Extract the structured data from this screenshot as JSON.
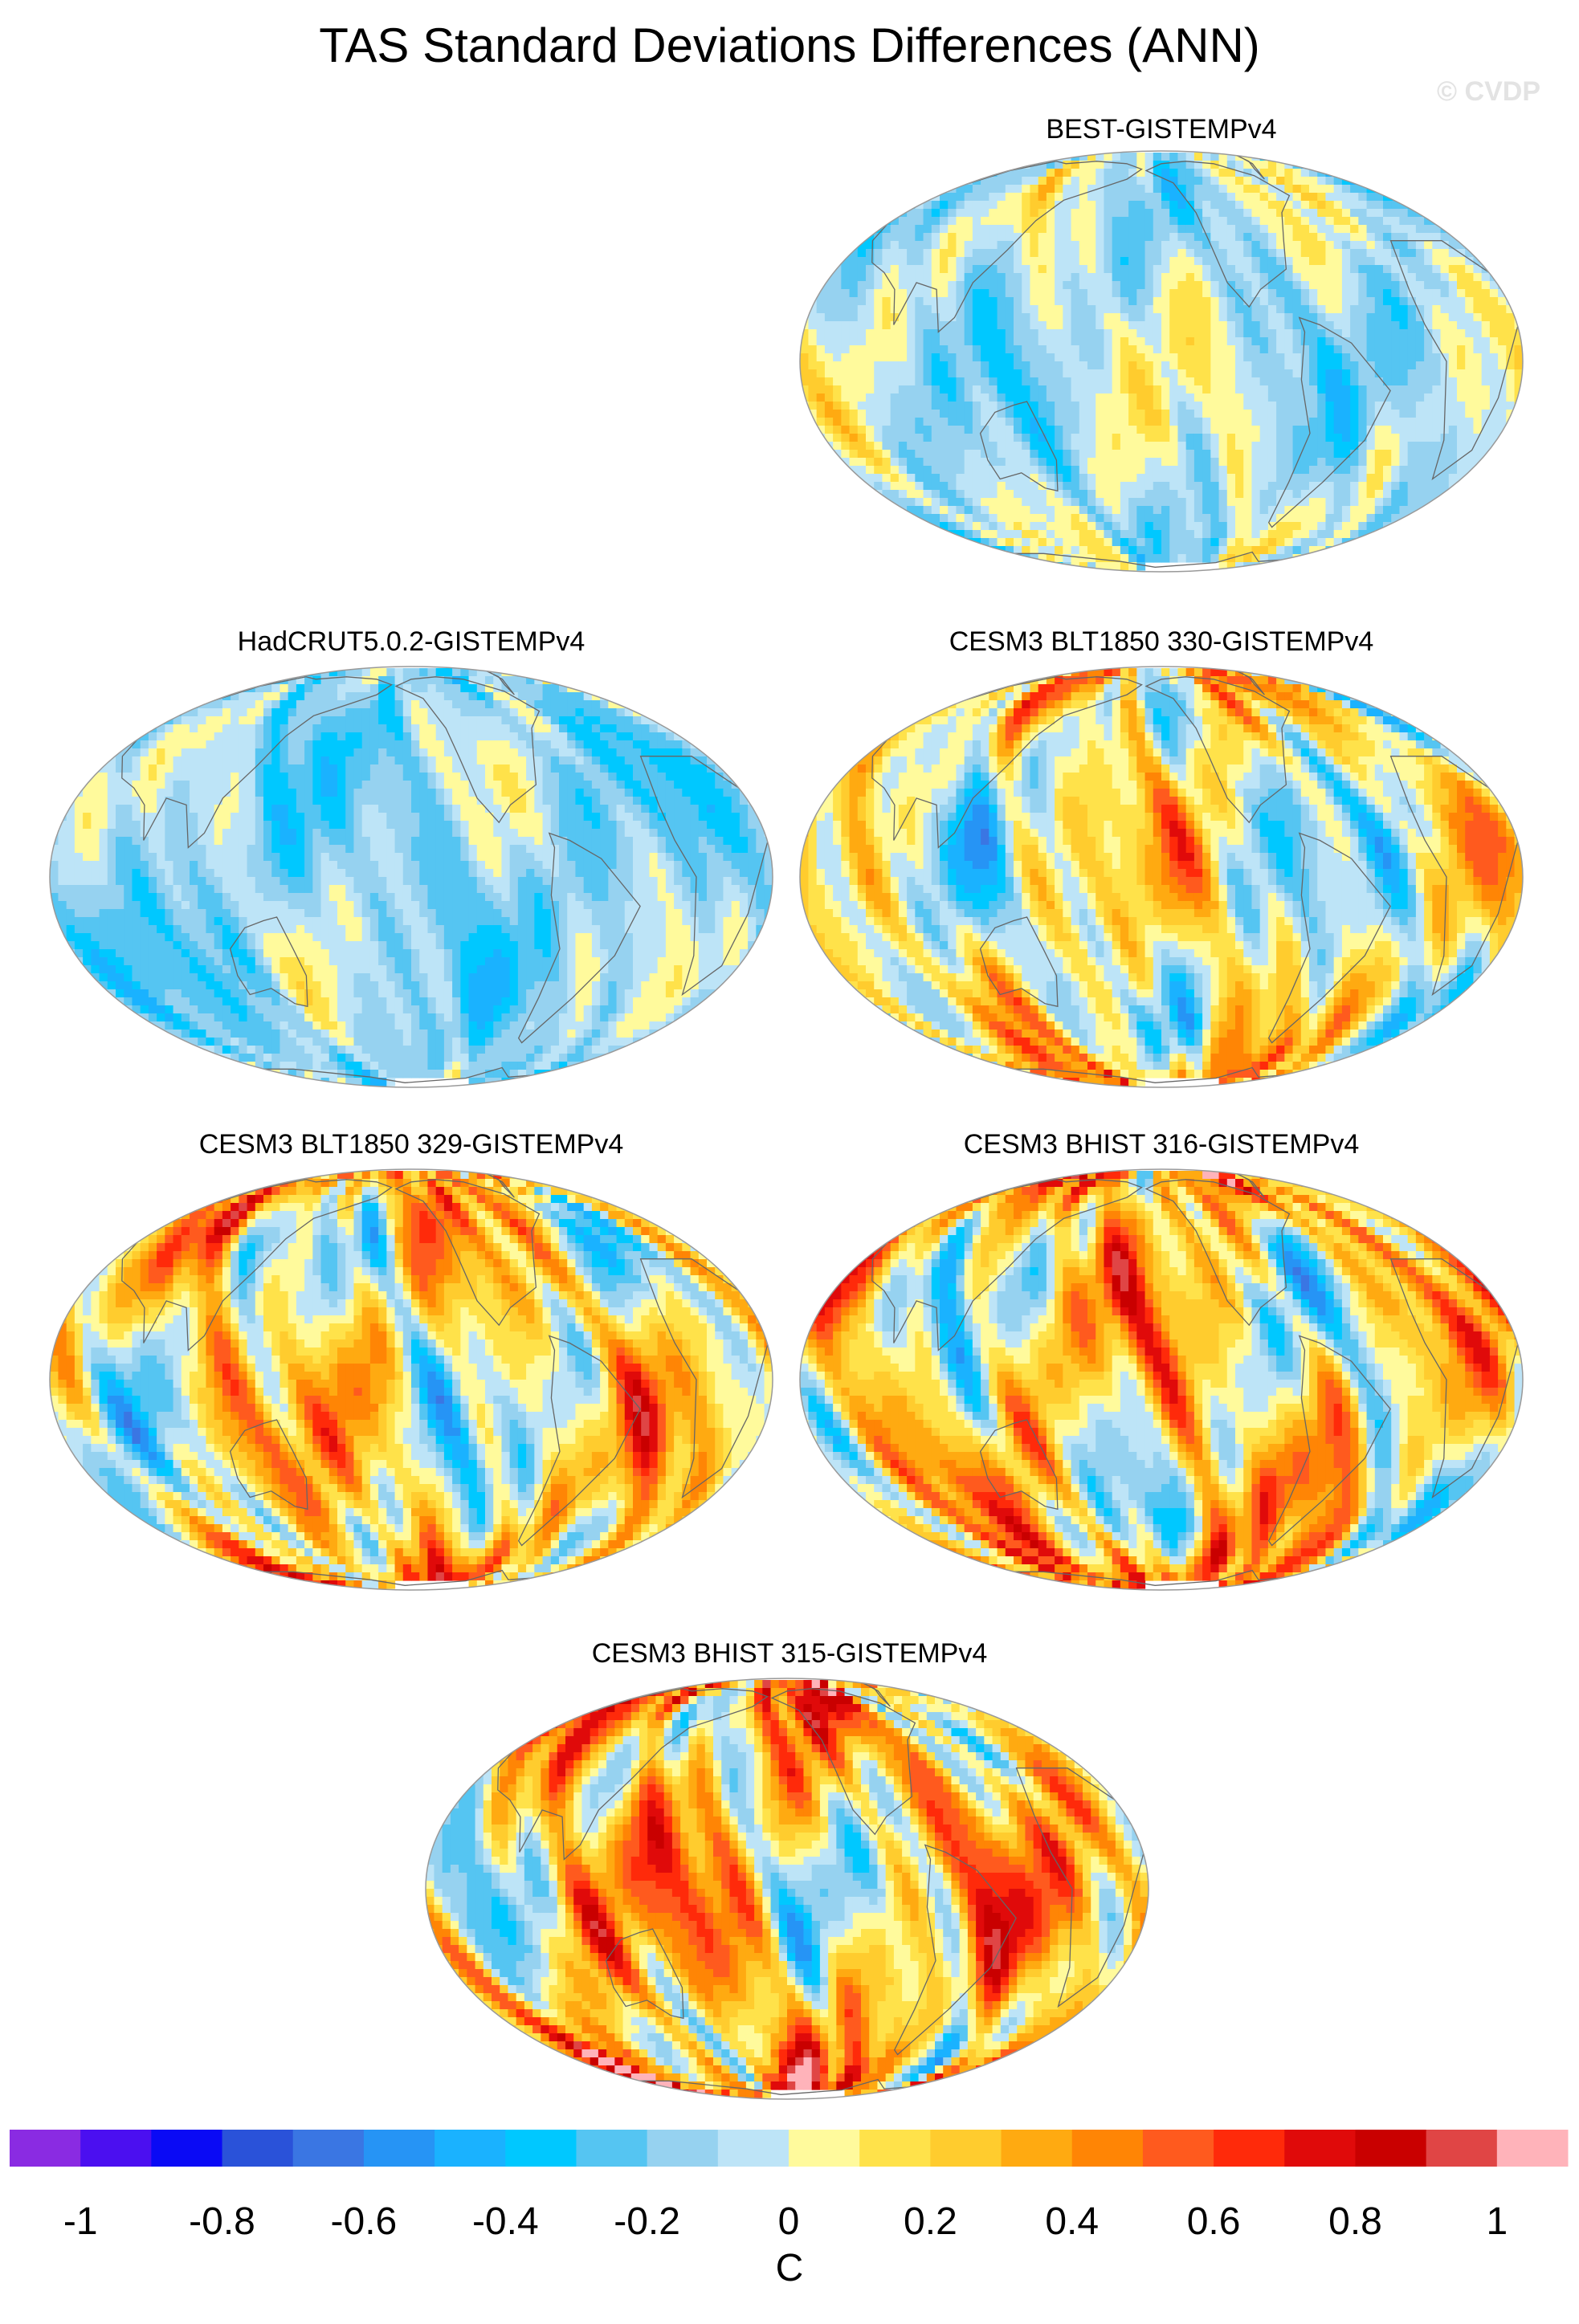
{
  "chart_data": {
    "type": "heatmap",
    "title": "TAS Standard Deviations Differences (ANN)",
    "watermark": "© CVDP",
    "panels": [
      {
        "title": "BEST-GISTEMPv4",
        "intensity": 0.45,
        "bias": -0.08
      },
      {
        "title": "HadCRUT5.0.2-GISTEMPv4",
        "intensity": 0.4,
        "bias": -0.15
      },
      {
        "title": "CESM3 BLT1850 330-GISTEMPv4",
        "intensity": 0.75,
        "bias": 0.05
      },
      {
        "title": "CESM3 BLT1850 329-GISTEMPv4",
        "intensity": 0.85,
        "bias": 0.12
      },
      {
        "title": "CESM3 BHIST 316-GISTEMPv4",
        "intensity": 0.9,
        "bias": 0.16
      },
      {
        "title": "CESM3 BHIST 315-GISTEMPv4",
        "intensity": 0.95,
        "bias": 0.22
      }
    ],
    "colorbar": {
      "label": "C",
      "range": [
        -1.1,
        1.1
      ],
      "step": 0.1,
      "tick_labels": [
        "-1",
        "-0.8",
        "-0.6",
        "-0.4",
        "-0.2",
        "0",
        "0.2",
        "0.4",
        "0.6",
        "0.8",
        "1"
      ],
      "colors": [
        "#8a2be2",
        "#4b0ff0",
        "#0a0af5",
        "#2a52d9",
        "#3a76e3",
        "#2694f5",
        "#1ab2ff",
        "#00c8ff",
        "#55c5f2",
        "#96d2f0",
        "#bde4f7",
        "#fffa9c",
        "#ffe24a",
        "#ffcc2e",
        "#ffaa11",
        "#ff8505",
        "#ff5a1e",
        "#ff2a0a",
        "#e00a0a",
        "#c90000",
        "#e04545",
        "#ffb3ba"
      ]
    }
  }
}
